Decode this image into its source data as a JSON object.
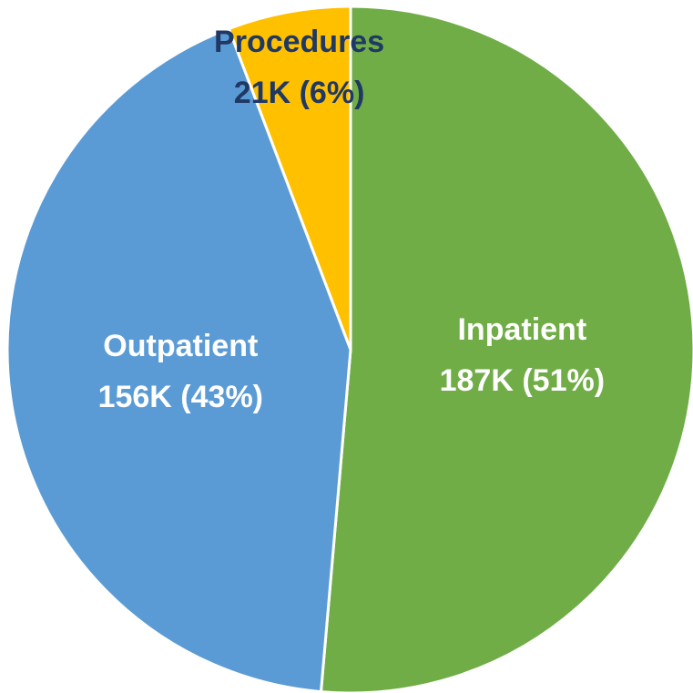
{
  "chart_data": {
    "type": "pie",
    "categories": [
      "Inpatient",
      "Outpatient",
      "Procedures"
    ],
    "values": [
      187000,
      156000,
      21000
    ],
    "value_labels": [
      "187K (51%)",
      "156K (43%)",
      "21K (6%)"
    ],
    "colors": [
      "#70ad47",
      "#5b9bd5",
      "#ffc000"
    ],
    "label_colors": [
      "#ffffff",
      "#ffffff",
      "#1f3864"
    ]
  }
}
